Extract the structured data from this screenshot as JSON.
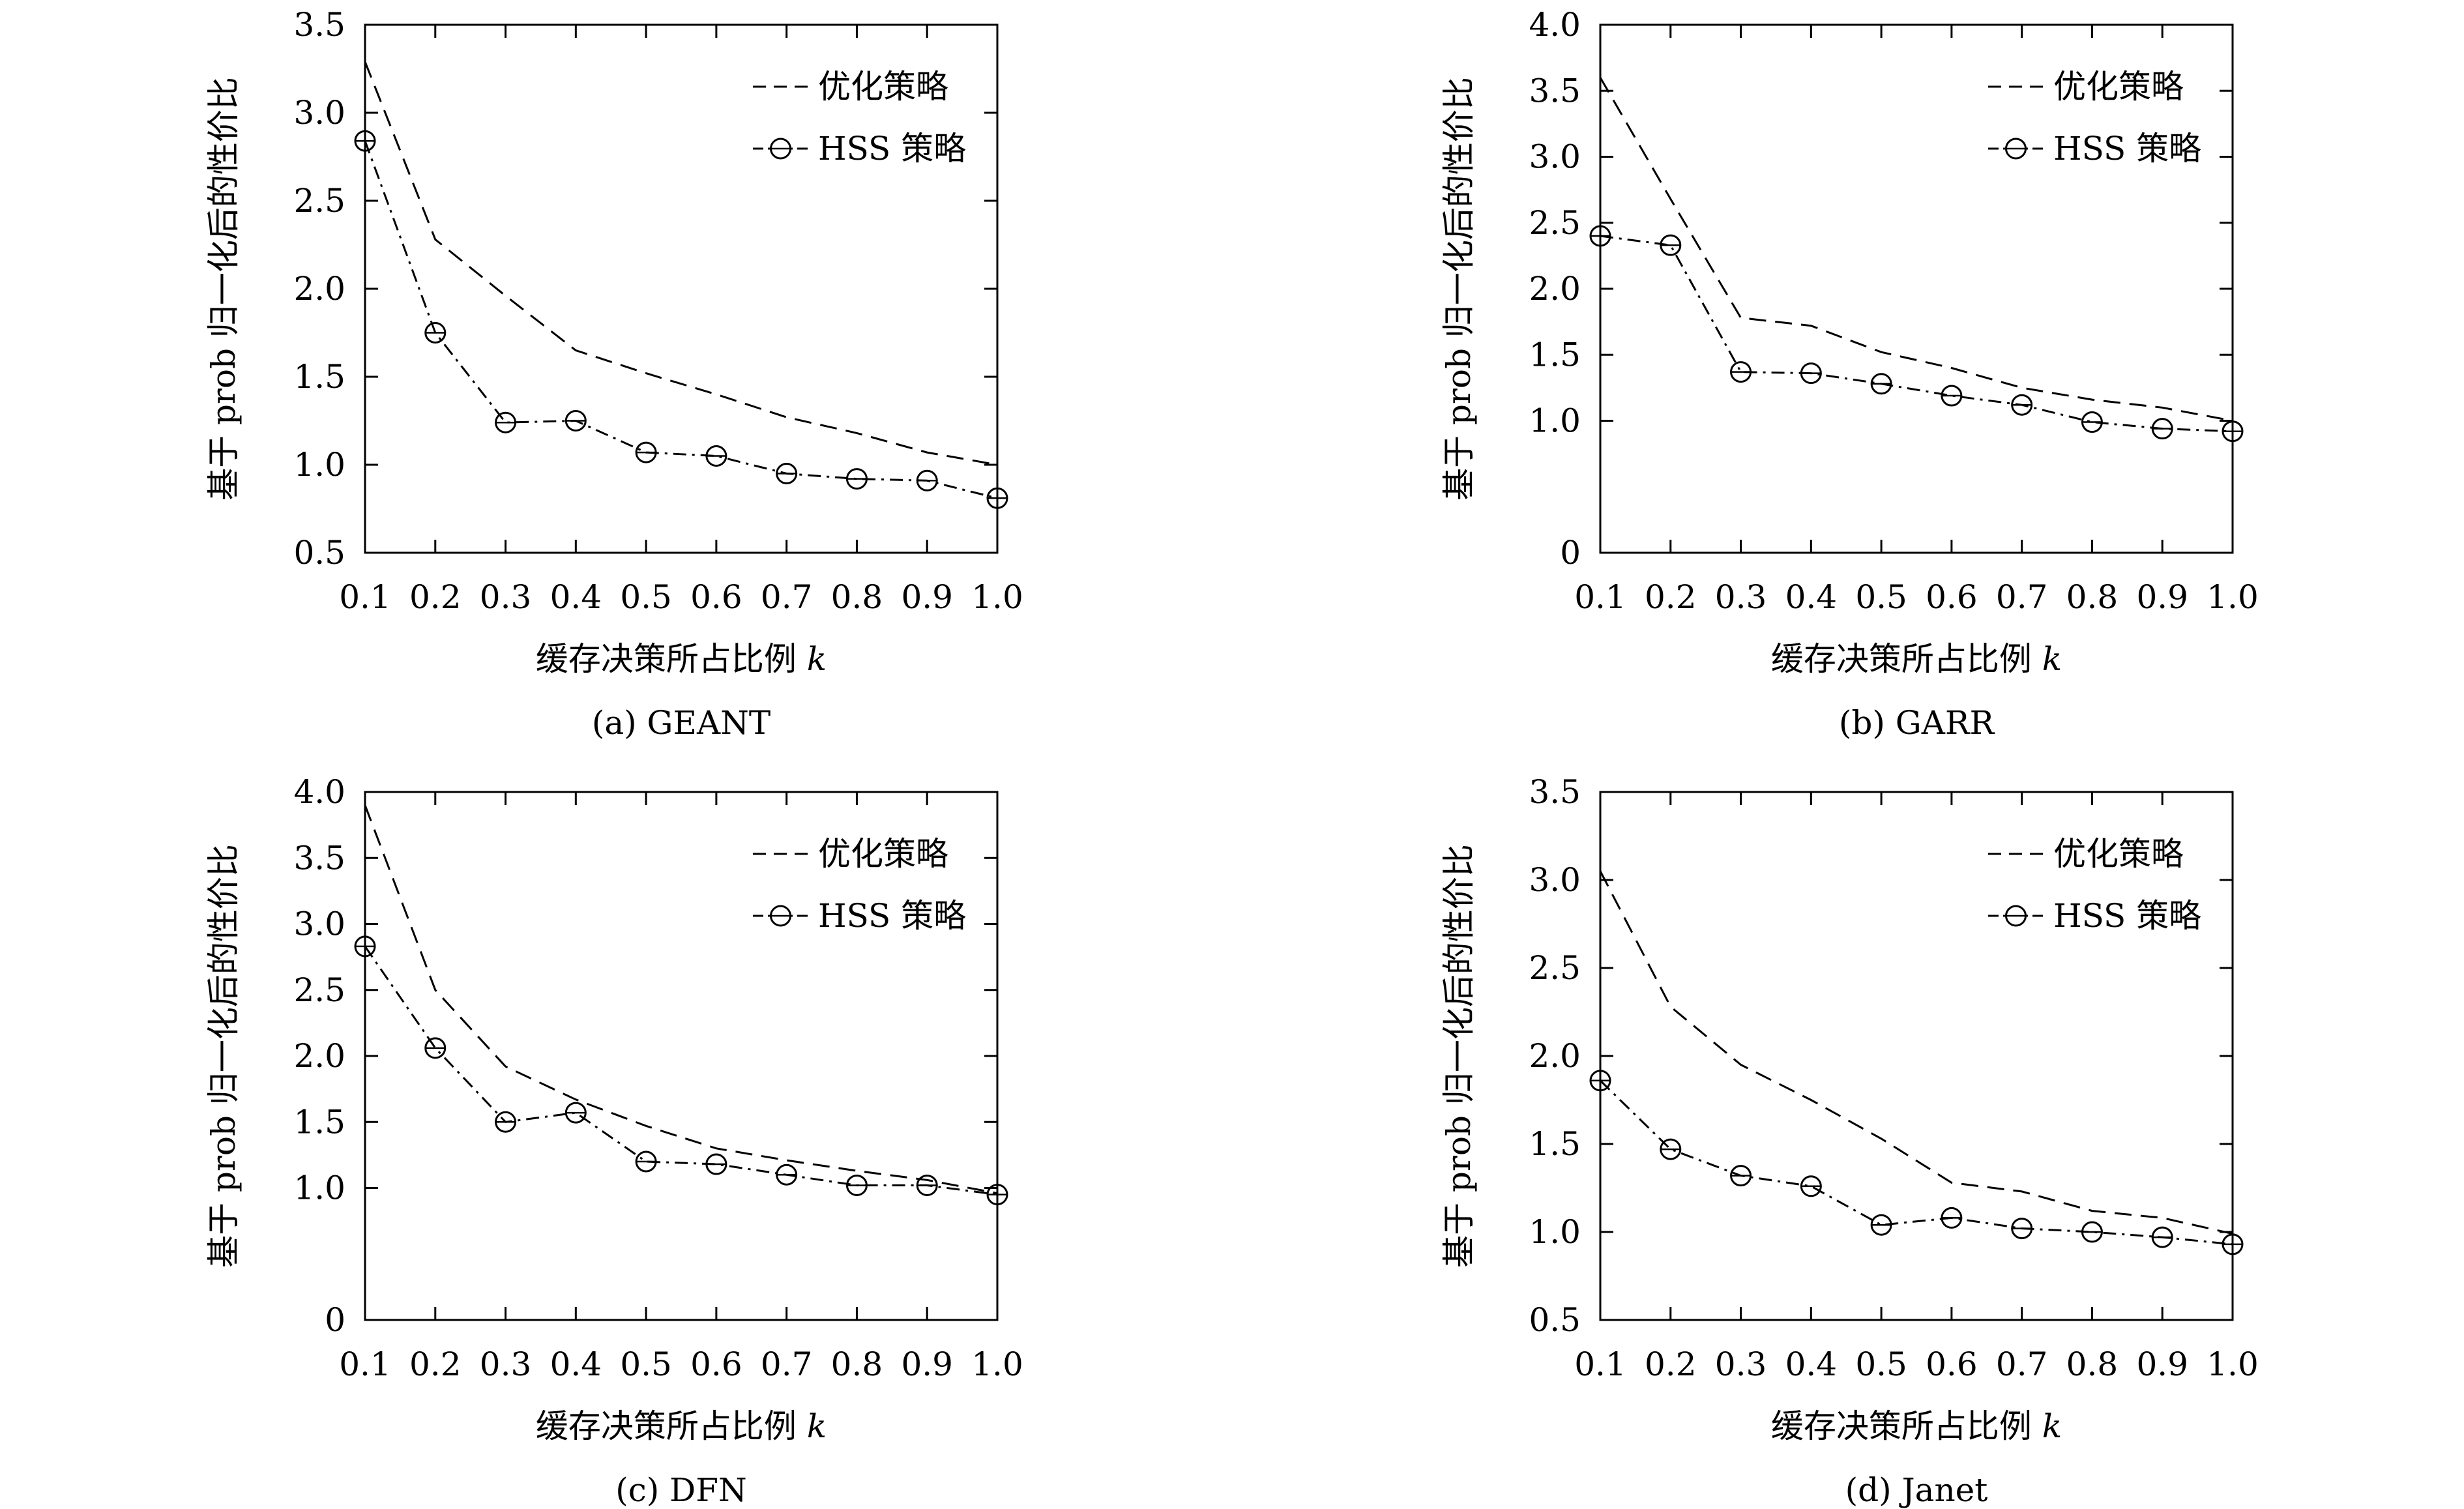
{
  "legend": {
    "optimal": "优化策略",
    "hss": "HSS 策略"
  },
  "xlabel": "缓存决策所占比例 ",
  "xlabel_var": "k",
  "ylabel": "基于 prob 归一化后的性价比",
  "chart_data": [
    {
      "type": "line",
      "caption": "(a) GEANT",
      "x": [
        0.1,
        0.2,
        0.3,
        0.4,
        0.5,
        0.6,
        0.7,
        0.8,
        0.9,
        1.0
      ],
      "x_ticks": [
        "0.1",
        "0.2",
        "0.3",
        "0.4",
        "0.5",
        "0.6",
        "0.7",
        "0.8",
        "0.9",
        "1.0"
      ],
      "xlim": [
        0.1,
        1.0
      ],
      "ylim": [
        0.5,
        3.5
      ],
      "y_ticks": [
        "0.5",
        "1.0",
        "1.5",
        "2.0",
        "2.5",
        "3.0",
        "3.5"
      ],
      "legend_position": "top-right",
      "grid": false,
      "series": [
        {
          "name": "优化策略",
          "style": "dashed",
          "values": [
            3.29,
            2.28,
            1.96,
            1.65,
            1.52,
            1.4,
            1.27,
            1.18,
            1.07,
            1.0
          ]
        },
        {
          "name": "HSS 策略",
          "style": "dash-dot-circle",
          "values": [
            2.84,
            1.75,
            1.24,
            1.25,
            1.07,
            1.05,
            0.95,
            0.92,
            0.91,
            0.81
          ]
        }
      ]
    },
    {
      "type": "line",
      "caption": "(b) GARR",
      "x": [
        0.1,
        0.2,
        0.3,
        0.4,
        0.5,
        0.6,
        0.7,
        0.8,
        0.9,
        1.0
      ],
      "x_ticks": [
        "0.1",
        "0.2",
        "0.3",
        "0.4",
        "0.5",
        "0.6",
        "0.7",
        "0.8",
        "0.9",
        "1.0"
      ],
      "xlim": [
        0.1,
        1.0
      ],
      "ylim": [
        0,
        4.0
      ],
      "y_ticks": [
        "0",
        "1.0",
        "1.5",
        "2.0",
        "2.5",
        "3.0",
        "3.5",
        "4.0"
      ],
      "legend_position": "top-right",
      "grid": false,
      "series": [
        {
          "name": "优化策略",
          "style": "dashed",
          "values": [
            3.6,
            2.68,
            1.78,
            1.72,
            1.52,
            1.4,
            1.25,
            1.16,
            1.1,
            1.0
          ]
        },
        {
          "name": "HSS 策略",
          "style": "dash-dot-circle",
          "values": [
            2.4,
            2.33,
            1.37,
            1.36,
            1.28,
            1.19,
            1.12,
            0.99,
            0.94,
            0.92
          ]
        }
      ]
    },
    {
      "type": "line",
      "caption": "(c) DFN",
      "x": [
        0.1,
        0.2,
        0.3,
        0.4,
        0.5,
        0.6,
        0.7,
        0.8,
        0.9,
        1.0
      ],
      "x_ticks": [
        "0.1",
        "0.2",
        "0.3",
        "0.4",
        "0.5",
        "0.6",
        "0.7",
        "0.8",
        "0.9",
        "1.0"
      ],
      "xlim": [
        0.1,
        1.0
      ],
      "ylim": [
        0,
        4.0
      ],
      "y_ticks": [
        "0",
        "1.0",
        "1.5",
        "2.0",
        "2.5",
        "3.0",
        "3.5",
        "4.0"
      ],
      "legend_position": "top-right",
      "grid": false,
      "series": [
        {
          "name": "优化策略",
          "style": "dashed",
          "values": [
            3.9,
            2.5,
            1.92,
            1.67,
            1.47,
            1.3,
            1.21,
            1.13,
            1.06,
            0.96
          ]
        },
        {
          "name": "HSS 策略",
          "style": "dash-dot-circle",
          "values": [
            2.83,
            2.06,
            1.5,
            1.57,
            1.2,
            1.18,
            1.1,
            1.02,
            1.02,
            0.95
          ]
        }
      ]
    },
    {
      "type": "line",
      "caption": "(d) Janet",
      "x": [
        0.1,
        0.2,
        0.3,
        0.4,
        0.5,
        0.6,
        0.7,
        0.8,
        0.9,
        1.0
      ],
      "x_ticks": [
        "0.1",
        "0.2",
        "0.3",
        "0.4",
        "0.5",
        "0.6",
        "0.7",
        "0.8",
        "0.9",
        "1.0"
      ],
      "xlim": [
        0.1,
        1.0
      ],
      "ylim": [
        0.5,
        3.5
      ],
      "y_ticks": [
        "0.5",
        "1.0",
        "1.5",
        "2.0",
        "2.5",
        "3.0",
        "3.5"
      ],
      "legend_position": "top-right",
      "grid": false,
      "series": [
        {
          "name": "优化策略",
          "style": "dashed",
          "values": [
            3.05,
            2.28,
            1.95,
            1.75,
            1.53,
            1.28,
            1.23,
            1.12,
            1.08,
            0.99
          ]
        },
        {
          "name": "HSS 策略",
          "style": "dash-dot-circle",
          "values": [
            1.86,
            1.47,
            1.32,
            1.26,
            1.04,
            1.08,
            1.02,
            1.0,
            0.97,
            0.93
          ]
        }
      ]
    }
  ]
}
